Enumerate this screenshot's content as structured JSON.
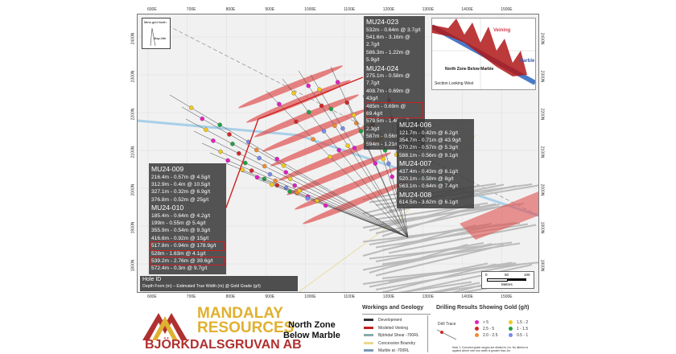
{
  "axes": {
    "x_ticks": [
      "600E",
      "700E",
      "800E",
      "900E",
      "1000E",
      "1100E",
      "1200E",
      "1300E",
      "1400E",
      "1500E"
    ],
    "y_ticks": [
      "2400N",
      "2300N",
      "2200N",
      "2100N",
      "2000N",
      "1900N",
      "1800N"
    ]
  },
  "north_arrow": {
    "mine_grid": "Mine-grid North",
    "map": "Map-Nth"
  },
  "callouts": [
    {
      "hole": "MU24-023",
      "intercepts": [
        {
          "text": "532m - 0.64m @ 3.7g/t"
        },
        {
          "text": "541.6m - 3.16m @ 2.7g/t"
        },
        {
          "text": "586.3m - 1.22m @ 5.9g/t"
        }
      ]
    },
    {
      "hole": "MU24-024",
      "intercepts": [
        {
          "text": "275.1m - 0.58m @ 7.7g/t"
        },
        {
          "text": "408.7m - 0.69m @ 43g/t"
        },
        {
          "text": "485m - 0.69m @ 69.4g/t",
          "highlight": true
        },
        {
          "text": "579.5m - 1.46m @ 2.3g/t"
        },
        {
          "text": "587m - 0.56m @ 7.3g/t"
        },
        {
          "text": "594m - 1.21m @ 2.9g/t"
        }
      ]
    },
    {
      "hole": "MU24-006",
      "intercepts": [
        {
          "text": "121.7m - 0.42m @ 6.2g/t"
        },
        {
          "text": "354.7m - 0.71m @ 43.9g/t"
        },
        {
          "text": "570.2m - 0.57m @ 5.3g/t"
        },
        {
          "text": "588.1m - 0.56m @ 9.1g/t"
        }
      ]
    },
    {
      "hole": "MU24-007",
      "intercepts": [
        {
          "text": "437.4m - 0.43m @ 6.1g/t"
        },
        {
          "text": "520.1m - 0.58m @ 8g/t"
        },
        {
          "text": "563.1m - 0.64m @ 7.4g/t"
        }
      ]
    },
    {
      "hole": "MU24-008",
      "intercepts": [
        {
          "text": "614.5m - 3.62m @ 6.1g/t"
        }
      ]
    },
    {
      "hole": "MU24-009",
      "intercepts": [
        {
          "text": "216.4m - 0.57m @ 4.5g/t"
        },
        {
          "text": "312.9m - 0.4m @ 10.5g/t"
        },
        {
          "text": "327.1m - 0.32m @ 6.9g/t"
        },
        {
          "text": "376.8m - 0.52m @ 25g/t"
        }
      ]
    },
    {
      "hole": "MU24-010",
      "intercepts": [
        {
          "text": "185.4m - 0.64m @ 4.2g/t"
        },
        {
          "text": "199m - 0.55m @ 5.4g/t"
        },
        {
          "text": "355.9m - 0.54m @ 9.3g/t"
        },
        {
          "text": "416.6m - 0.92m @ 15g/t"
        },
        {
          "text": "517.8m - 0.94m @ 178.9g/t",
          "highlight": true
        },
        {
          "text": "528m - 1.63m @ 4.1g/t"
        },
        {
          "text": "539.2m - 2.76m @ 39.6g/t",
          "highlight": true
        },
        {
          "text": "572.4m - 0.3m @ 9.7g/t"
        }
      ]
    }
  ],
  "inset": {
    "veining": "Veining",
    "marble": "Marble",
    "zone": "North Zone Below Marble",
    "view": "Section Looking West"
  },
  "hole_id_legend": {
    "title": "Hole ID",
    "format": "Depth From (m) – Estimated True Width (m) @ Gold Grade (g/t)"
  },
  "scale_bar": {
    "labels": [
      "0",
      "50",
      "100"
    ],
    "unit": "Metres"
  },
  "logo": {
    "line1": "MANDALAY",
    "line2": "RESOURCES",
    "line3": "BJÖRKDALSGRUVAN AB"
  },
  "title": {
    "line1": "North Zone",
    "line2": "Below Marble"
  },
  "workings_legend": {
    "title": "Workings and Geology",
    "items": [
      "Development",
      "Modeled Veining",
      "Björkdal Shear -700RL",
      "Concession Boundry",
      "Marble at -700RL"
    ]
  },
  "drilling_legend": {
    "title": "Drilling Results Showing Gold (g/t)",
    "drill_trace": "Drill Trace",
    "grades": [
      {
        "label": "> 5",
        "color": "#e020c0"
      },
      {
        "label": "2.5 - 5",
        "color": "#d02828"
      },
      {
        "label": "2.0 - 2.5",
        "color": "#f08a30"
      },
      {
        "label": "1.5 - 2",
        "color": "#f0c820"
      },
      {
        "label": "1 - 1.5",
        "color": "#20a040"
      },
      {
        "label": "0.5 - 1",
        "color": "#7a8ae8"
      }
    ],
    "note": "Note 1: Coloured grade ranges are diluted to 1m. No dilution is applied where vein true width is greater than 1m."
  },
  "colors": {
    "callout_bg": "#3c3c3c",
    "highlight": "#d02020",
    "veining": "#e05050",
    "logo_gold": "#e0b030",
    "logo_red": "#b03030"
  }
}
